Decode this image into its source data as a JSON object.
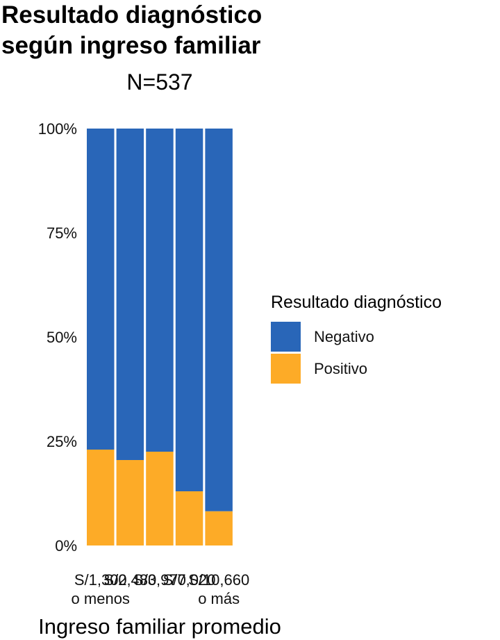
{
  "title_line1": "Resultado diagnóstico",
  "title_line2": "según ingreso familiar",
  "subtitle": "N=537",
  "colors": {
    "Negativo": "#2966B8",
    "Positivo": "#FDAB27"
  },
  "chart_data": {
    "type": "bar",
    "stacked": true,
    "categories": [
      [
        "S/1,300",
        "o menos"
      ],
      [
        "S/2,480",
        ""
      ],
      [
        "S/3,970",
        ""
      ],
      [
        "S/7,020",
        ""
      ],
      [
        "S/10,660",
        "o más"
      ]
    ],
    "series": [
      {
        "name": "Positivo",
        "values": [
          0.23,
          0.205,
          0.225,
          0.13,
          0.082
        ]
      },
      {
        "name": "Negativo",
        "values": [
          0.77,
          0.795,
          0.775,
          0.87,
          0.918
        ]
      }
    ],
    "xlabel": "Ingreso familiar promedio",
    "ylabel": "",
    "ylim": [
      0,
      1
    ],
    "yticks": [
      "0%",
      "25%",
      "50%",
      "75%",
      "100%"
    ],
    "legend": {
      "title": "Resultado diagnóstico",
      "entries": [
        "Negativo",
        "Positivo"
      ],
      "position": "right"
    }
  }
}
